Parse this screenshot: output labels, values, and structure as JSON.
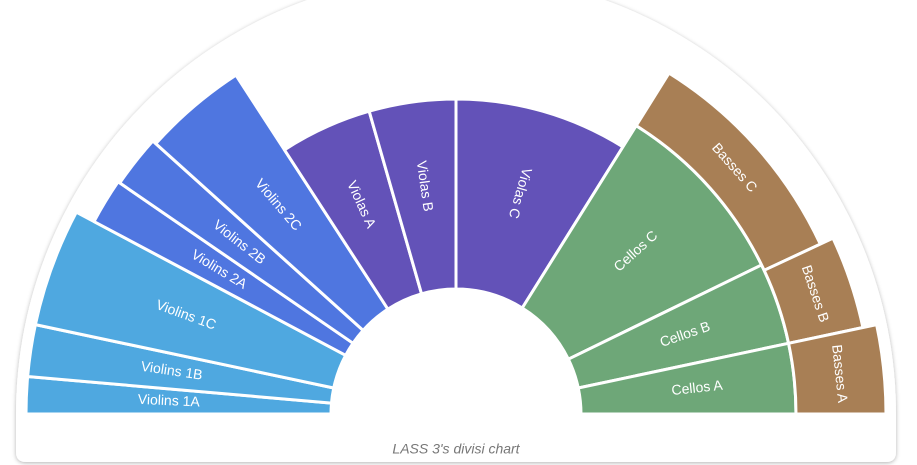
{
  "segments": [
    "Violins 1A",
    "Violins 1B",
    "Violins 1C",
    "Violins 2A",
    "Violins 2B",
    "Violins 2C",
    "Violas A",
    "Violas B",
    "Violas C",
    "Cellos C",
    "Cellos B",
    "Cellos A",
    "Basses C",
    "Basses B",
    "Basses A"
  ],
  "caption": "LASS 3's divisi chart"
}
